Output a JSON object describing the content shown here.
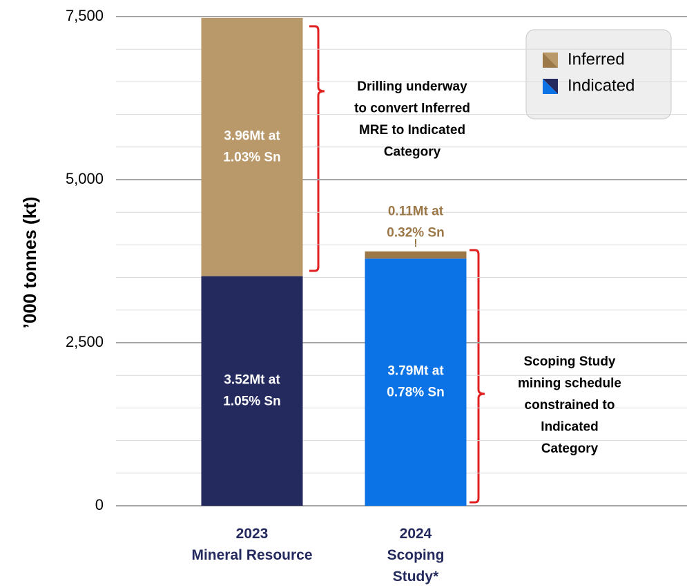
{
  "chart_data": {
    "type": "stacked_bar",
    "y_label": "’000 tonnes (kt)",
    "categories": [
      "2023\nMineral Resource",
      "2024\nScoping\nStudy*"
    ],
    "series": [
      {
        "name": "Indicated",
        "colors": [
          "#252a5e",
          "#0b73e6"
        ],
        "values": [
          3520,
          3790
        ],
        "value_labels": [
          "3.52Mt at\n1.05% Sn",
          "3.79Mt at\n0.78% Sn"
        ]
      },
      {
        "name": "Inferred",
        "colors": [
          "#b9986a",
          "#9c7848"
        ],
        "values": [
          3960,
          110
        ],
        "value_labels": [
          "3.96Mt at\n1.03% Sn",
          "0.11Mt at\n0.32% Sn"
        ]
      }
    ],
    "ylim": [
      0,
      7500
    ],
    "yticks": [
      0,
      {
        "value": 2500,
        "label": "2,500"
      },
      {
        "value": 5000,
        "label": "5,000"
      },
      {
        "value": 7500,
        "label": "7,500"
      }
    ],
    "minor_yticks": [
      500,
      1000,
      1500,
      2000,
      3000,
      3500,
      4000,
      4500,
      5500,
      6000,
      6500,
      7000
    ],
    "grid": true,
    "legend": "top-right",
    "annotations": [
      "Drilling underway\nto convert Inferred\nMRE to Indicated\nCategory",
      "Scoping Study\nmining schedule\nconstrained to\nIndicated\nCategory"
    ]
  }
}
